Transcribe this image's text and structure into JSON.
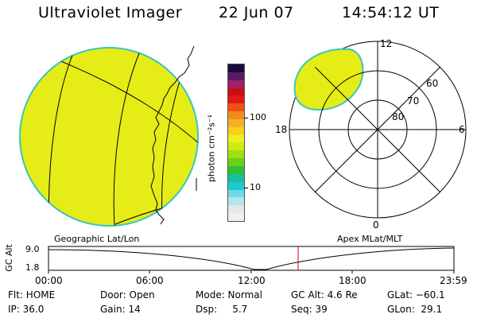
{
  "header": {
    "title": "Ultraviolet Imager",
    "date": "22 Jun 07",
    "time": "14:54:12 UT"
  },
  "colorbar": {
    "unit_label": "photon cm⁻²s⁻¹",
    "tick_100": "100",
    "tick_10": "10",
    "colors": [
      "#1a0a3a",
      "#5a1a6a",
      "#a0206a",
      "#c81010",
      "#e01818",
      "#ee5018",
      "#f28a20",
      "#f5b028",
      "#f8d020",
      "#eef020",
      "#cbee10",
      "#9ee010",
      "#6cd018",
      "#30c030",
      "#18c0a0",
      "#20c8d0",
      "#70d8e8",
      "#b8e4ec",
      "#e0e8ea",
      "#f0f0f0"
    ]
  },
  "left_panel": {
    "caption": "Geographic Lat/Lon",
    "fill_color": "#e6ec16"
  },
  "right_panel": {
    "caption": "Apex MLat/MLT",
    "mlt_12": "12",
    "mlt_18": "18",
    "mlt_6": "6",
    "mlt_0": "0",
    "lat_60": "60",
    "lat_70": "70",
    "lat_80": "80"
  },
  "gc_plot": {
    "ylabel": "GC Alt",
    "ymax_label": "9.0",
    "ymin_label": "1.8",
    "current_time_color": "#e00000",
    "xticks": [
      "00:00",
      "06:00",
      "12:00",
      "18:00",
      "23:59"
    ]
  },
  "status": {
    "flt": "Flt: HOME",
    "ip": "IP: 36.0",
    "door": "Door: Open",
    "gain": "Gain: 14",
    "mode": "Mode: Normal",
    "dsp": "Dsp:     5.7",
    "gc_alt": "GC Alt: 4.6 Re",
    "seq": "Seq: 39",
    "glat": "GLat: −60.1",
    "glon": "GLon:  29.1"
  }
}
